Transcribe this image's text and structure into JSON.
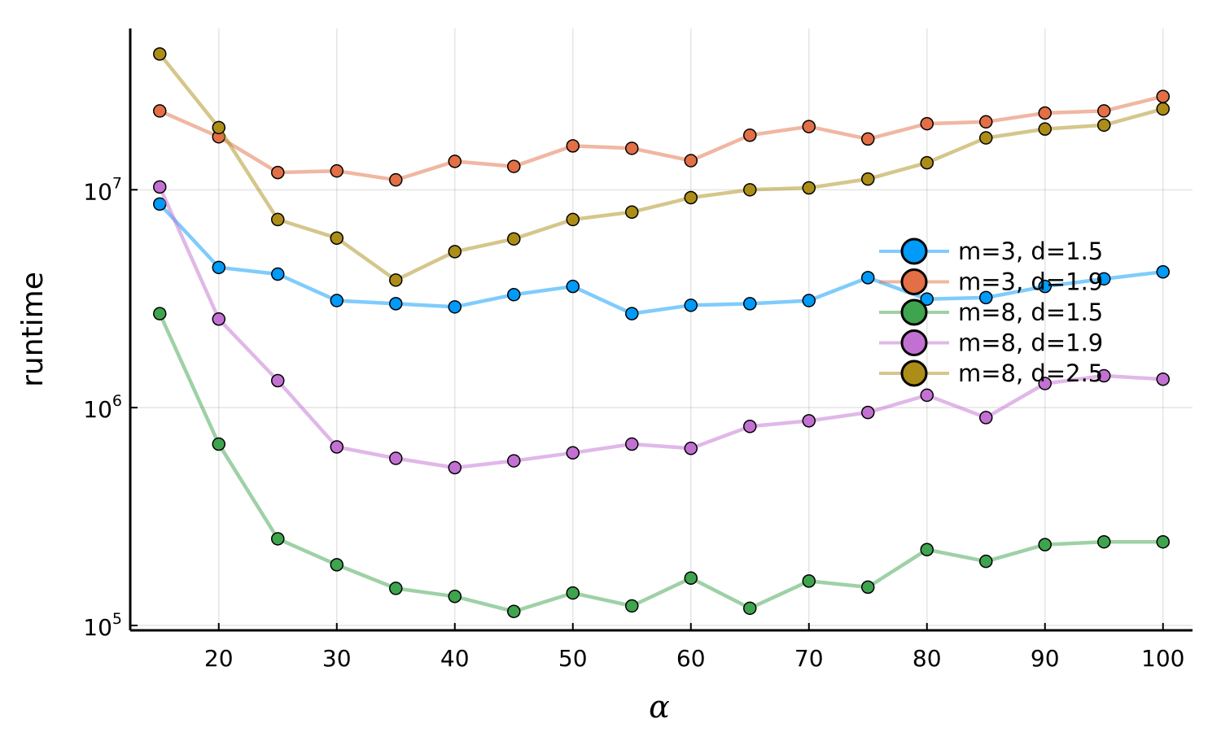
{
  "chart_data": {
    "type": "line",
    "title": "",
    "xlabel": "α",
    "ylabel": "runtime",
    "yscale": "log",
    "xlim": [
      12.5,
      102.5
    ],
    "ylim": [
      95000,
      55000000
    ],
    "x_ticks": [
      20,
      30,
      40,
      50,
      60,
      70,
      80,
      90,
      100
    ],
    "y_ticks": [
      {
        "value": 100000,
        "base": "10",
        "exp": "5"
      },
      {
        "value": 1000000,
        "base": "10",
        "exp": "6"
      },
      {
        "value": 10000000,
        "base": "10",
        "exp": "7"
      }
    ],
    "grid": true,
    "legend_position": "right",
    "x": [
      15,
      20,
      25,
      30,
      35,
      40,
      45,
      50,
      55,
      60,
      65,
      70,
      75,
      80,
      85,
      90,
      95,
      100
    ],
    "series": [
      {
        "name": "m=3, d=1.5",
        "color": "#009af9",
        "values": [
          8600000,
          4400000,
          4100000,
          3100000,
          3000000,
          2900000,
          3300000,
          3600000,
          2700000,
          2950000,
          3000000,
          3100000,
          3950000,
          3150000,
          3200000,
          3600000,
          3900000,
          4200000
        ]
      },
      {
        "name": "m=3, d=1.9",
        "color": "#e26f46",
        "values": [
          23000000,
          17500000,
          12000000,
          12200000,
          11100000,
          13500000,
          12800000,
          15900000,
          15500000,
          13600000,
          17800000,
          19500000,
          17100000,
          20100000,
          20500000,
          22500000,
          23000000,
          26800000
        ]
      },
      {
        "name": "m=8, d=1.5",
        "color": "#3ea44e",
        "values": [
          2700000,
          680000,
          250000,
          190000,
          148000,
          136000,
          116000,
          141000,
          123000,
          165000,
          120000,
          160000,
          150000,
          223000,
          197000,
          235000,
          242000,
          242000
        ]
      },
      {
        "name": "m=8, d=1.9",
        "color": "#c271d2",
        "values": [
          10300000,
          2550000,
          1330000,
          660000,
          585000,
          530000,
          570000,
          620000,
          680000,
          650000,
          820000,
          870000,
          950000,
          1140000,
          900000,
          1290000,
          1400000,
          1350000
        ]
      },
      {
        "name": "m=8, d=2.5",
        "color": "#ac8d18",
        "values": [
          42000000,
          19300000,
          7300000,
          6000000,
          3850000,
          5200000,
          5950000,
          7300000,
          7900000,
          9200000,
          10000000,
          10200000,
          11200000,
          13300000,
          17300000,
          19000000,
          19800000,
          23500000
        ]
      }
    ]
  }
}
